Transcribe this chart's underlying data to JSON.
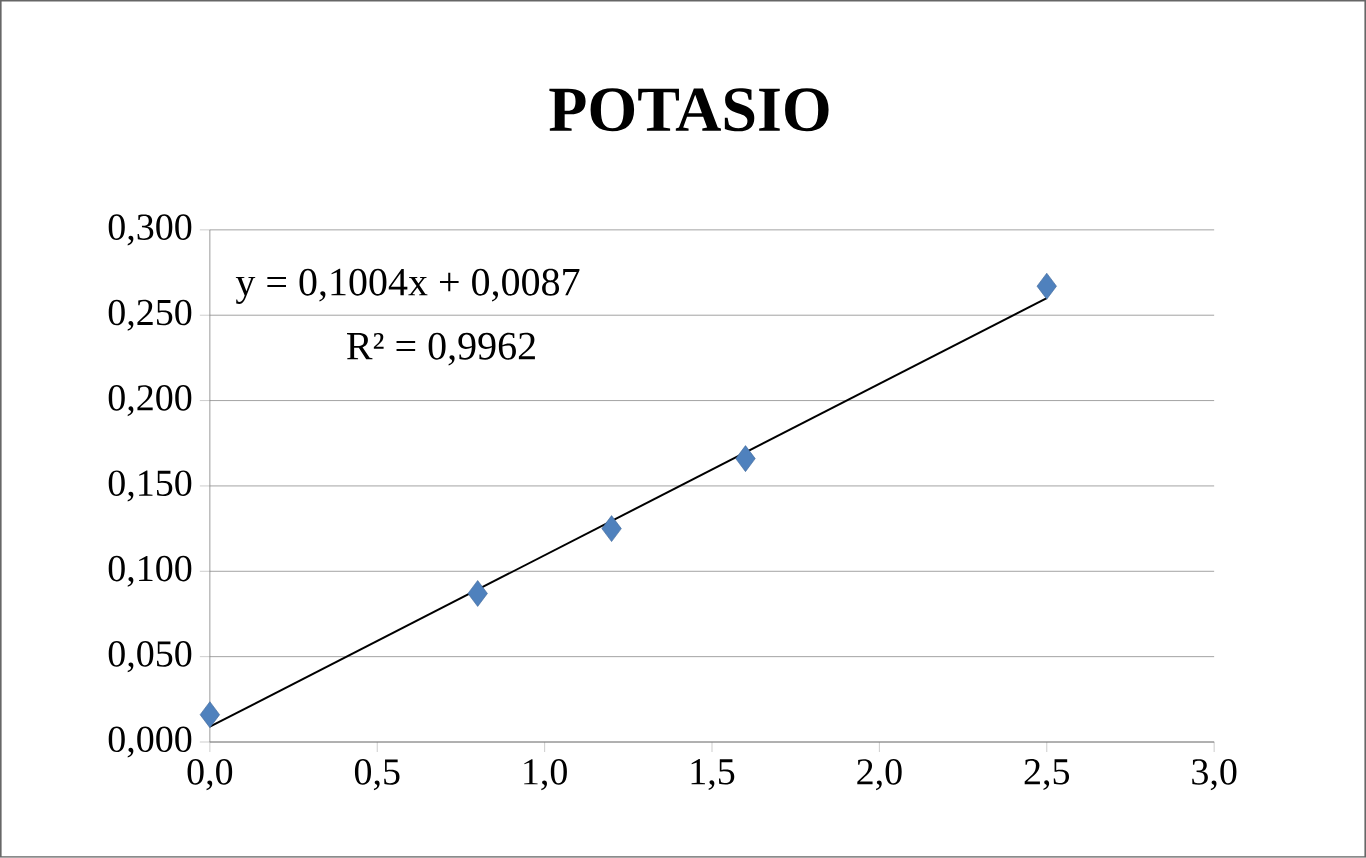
{
  "chart_data": {
    "type": "scatter",
    "title": "POTASIO",
    "grid": "y",
    "series": [
      {
        "marker": "diamond",
        "color": "#4f81bd",
        "x": [
          0,
          0.8,
          1.2,
          1.6,
          2.5
        ],
        "values": [
          0.016,
          0.087,
          0.125,
          0.166,
          0.267
        ]
      },
      {
        "type": "line",
        "marker": "none",
        "color": "#000000",
        "x": [
          0,
          2.5
        ],
        "values": [
          0.009,
          0.26
        ]
      }
    ],
    "xlim": [
      0,
      3
    ],
    "ylim": [
      0,
      0.3
    ],
    "xticks": [
      {
        "value": 0,
        "label": "0,0"
      },
      {
        "value": 0.5,
        "label": "0,5"
      },
      {
        "value": 1,
        "label": "1,0"
      },
      {
        "value": 1.5,
        "label": "1,5"
      },
      {
        "value": 2,
        "label": "2,0"
      },
      {
        "value": 2.5,
        "label": "2,5"
      },
      {
        "value": 3,
        "label": "3,0"
      }
    ],
    "yticks": [
      {
        "value": 0,
        "label": "0,000"
      },
      {
        "value": 0.05,
        "label": "0,050"
      },
      {
        "value": 0.1,
        "label": "0,100"
      },
      {
        "value": 0.15,
        "label": "0,150"
      },
      {
        "value": 0.2,
        "label": "0,200"
      },
      {
        "value": 0.25,
        "label": "0,250"
      },
      {
        "value": 0.3,
        "label": "0,300"
      }
    ],
    "annotations": [
      "y = 0,1004x + 0,0087",
      "R² = 0,9962"
    ]
  }
}
